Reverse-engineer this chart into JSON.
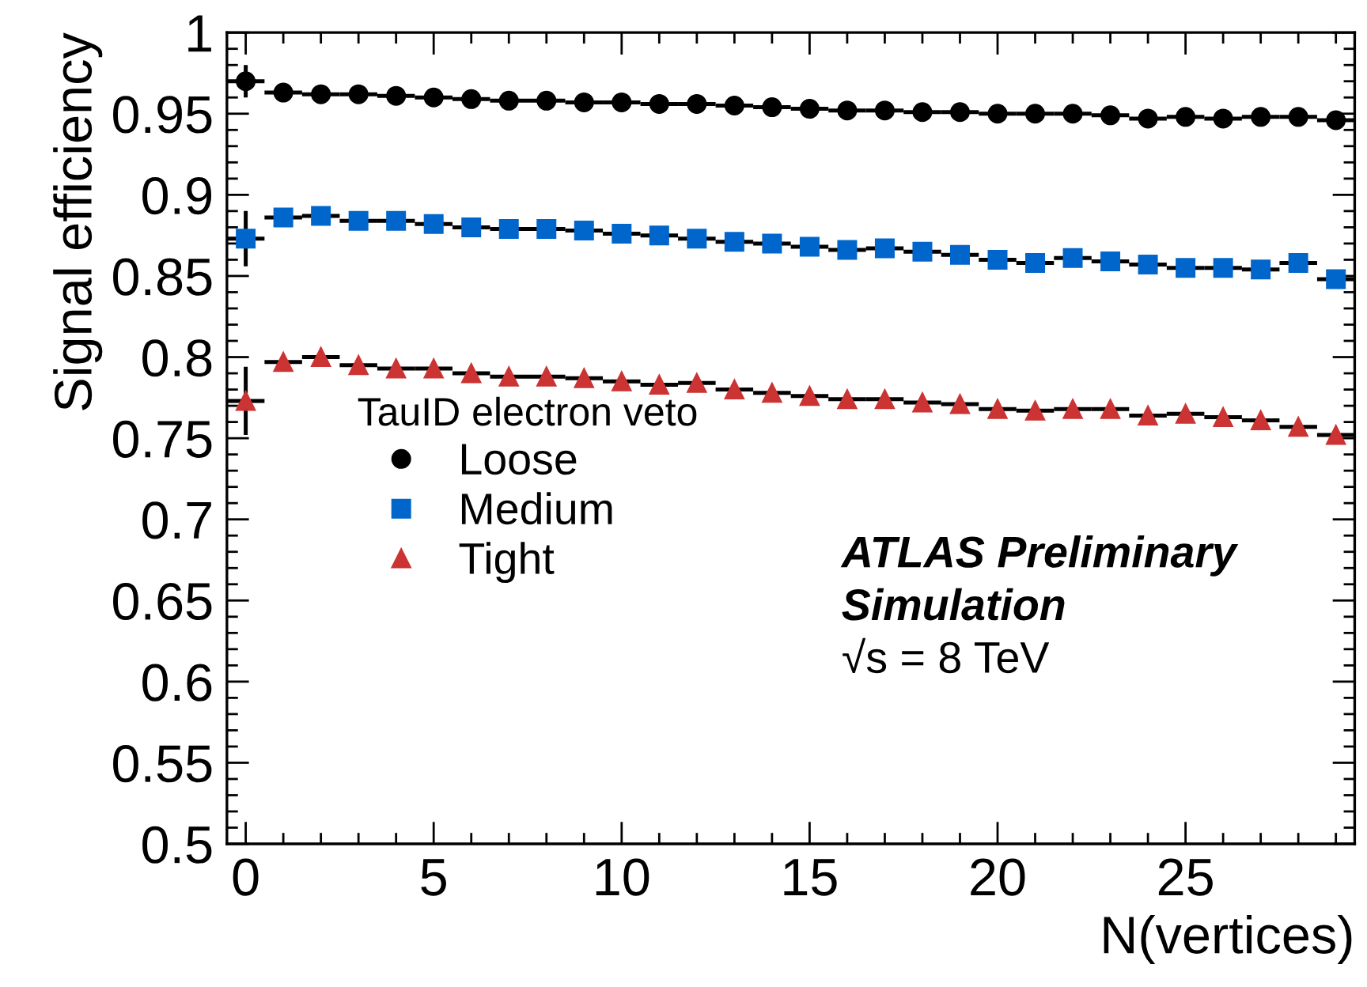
{
  "chart_data": {
    "type": "scatter",
    "xlabel": "N(vertices)",
    "ylabel": "Signal efficiency",
    "legend_title": "TauID electron veto",
    "legend": "bottom left",
    "grid": false,
    "x": [
      0,
      1,
      2,
      3,
      4,
      5,
      6,
      7,
      8,
      9,
      10,
      11,
      12,
      13,
      14,
      15,
      16,
      17,
      18,
      19,
      20,
      21,
      22,
      23,
      24,
      25,
      26,
      27,
      28,
      29
    ],
    "xlim": [
      -0.5,
      29.5
    ],
    "xticks": [
      0,
      5,
      10,
      15,
      20,
      25
    ],
    "ylim": [
      0.5,
      1
    ],
    "yticks": [
      0.5,
      0.55,
      0.6,
      0.65,
      0.7,
      0.75,
      0.8,
      0.85,
      0.9,
      0.95,
      1
    ],
    "series": [
      {
        "name": "Loose",
        "color": "#000000",
        "marker": "circle",
        "values": [
          0.97,
          0.963,
          0.962,
          0.962,
          0.961,
          0.96,
          0.959,
          0.958,
          0.958,
          0.957,
          0.957,
          0.956,
          0.956,
          0.955,
          0.954,
          0.953,
          0.952,
          0.952,
          0.951,
          0.951,
          0.95,
          0.95,
          0.95,
          0.949,
          0.947,
          0.948,
          0.947,
          0.948,
          0.948,
          0.946
        ],
        "errors": [
          0.01,
          null,
          null,
          null,
          null,
          null,
          null,
          null,
          null,
          null,
          null,
          null,
          null,
          null,
          null,
          null,
          null,
          null,
          null,
          null,
          null,
          null,
          null,
          null,
          null,
          null,
          null,
          null,
          null,
          null
        ],
        "xerrors": [
          0.5,
          0.5,
          0.5,
          0.5,
          0.5,
          0.5,
          0.5,
          0.5,
          0.5,
          0.5,
          0.5,
          0.5,
          0.5,
          0.5,
          0.5,
          0.5,
          0.5,
          0.5,
          0.5,
          0.5,
          0.5,
          0.5,
          0.5,
          0.5,
          0.5,
          0.5,
          0.5,
          0.5,
          0.5,
          0.5
        ]
      },
      {
        "name": "Medium",
        "color": "#0066cc",
        "marker": "square",
        "values": [
          0.873,
          0.886,
          0.887,
          0.884,
          0.884,
          0.882,
          0.88,
          0.879,
          0.879,
          0.878,
          0.876,
          0.875,
          0.873,
          0.871,
          0.87,
          0.868,
          0.866,
          0.867,
          0.865,
          0.863,
          0.86,
          0.858,
          0.861,
          0.859,
          0.857,
          0.855,
          0.855,
          0.854,
          0.858,
          0.848
        ],
        "errors": [
          0.017,
          null,
          null,
          null,
          null,
          null,
          null,
          null,
          null,
          null,
          null,
          null,
          null,
          null,
          null,
          null,
          null,
          null,
          null,
          null,
          null,
          null,
          null,
          null,
          null,
          null,
          null,
          null,
          null,
          null
        ],
        "xerrors": [
          0.5,
          0.5,
          0.5,
          0.5,
          0.5,
          0.5,
          0.5,
          0.5,
          0.5,
          0.5,
          0.5,
          0.5,
          0.5,
          0.5,
          0.5,
          0.5,
          0.5,
          0.5,
          0.5,
          0.5,
          0.5,
          0.5,
          0.5,
          0.5,
          0.5,
          0.5,
          0.5,
          0.5,
          0.5,
          0.5
        ]
      },
      {
        "name": "Tight",
        "color": "#cc3333",
        "marker": "triangle",
        "values": [
          0.773,
          0.797,
          0.8,
          0.795,
          0.793,
          0.793,
          0.79,
          0.788,
          0.788,
          0.787,
          0.785,
          0.783,
          0.784,
          0.78,
          0.778,
          0.776,
          0.774,
          0.774,
          0.772,
          0.771,
          0.768,
          0.767,
          0.768,
          0.768,
          0.764,
          0.765,
          0.763,
          0.761,
          0.757,
          0.752
        ],
        "errors": [
          0.021,
          null,
          null,
          null,
          null,
          null,
          null,
          null,
          null,
          null,
          null,
          null,
          null,
          null,
          null,
          null,
          null,
          null,
          null,
          null,
          null,
          null,
          null,
          null,
          null,
          null,
          null,
          null,
          null,
          null
        ],
        "xerrors": [
          0.5,
          0.5,
          0.5,
          0.5,
          0.5,
          0.5,
          0.5,
          0.5,
          0.5,
          0.5,
          0.5,
          0.5,
          0.5,
          0.5,
          0.5,
          0.5,
          0.5,
          0.5,
          0.5,
          0.5,
          0.5,
          0.5,
          0.5,
          0.5,
          0.5,
          0.5,
          0.5,
          0.5,
          0.5,
          0.5
        ]
      }
    ],
    "annotations": [
      "ATLAS Preliminary",
      "Simulation",
      "√s = 8 TeV"
    ]
  }
}
